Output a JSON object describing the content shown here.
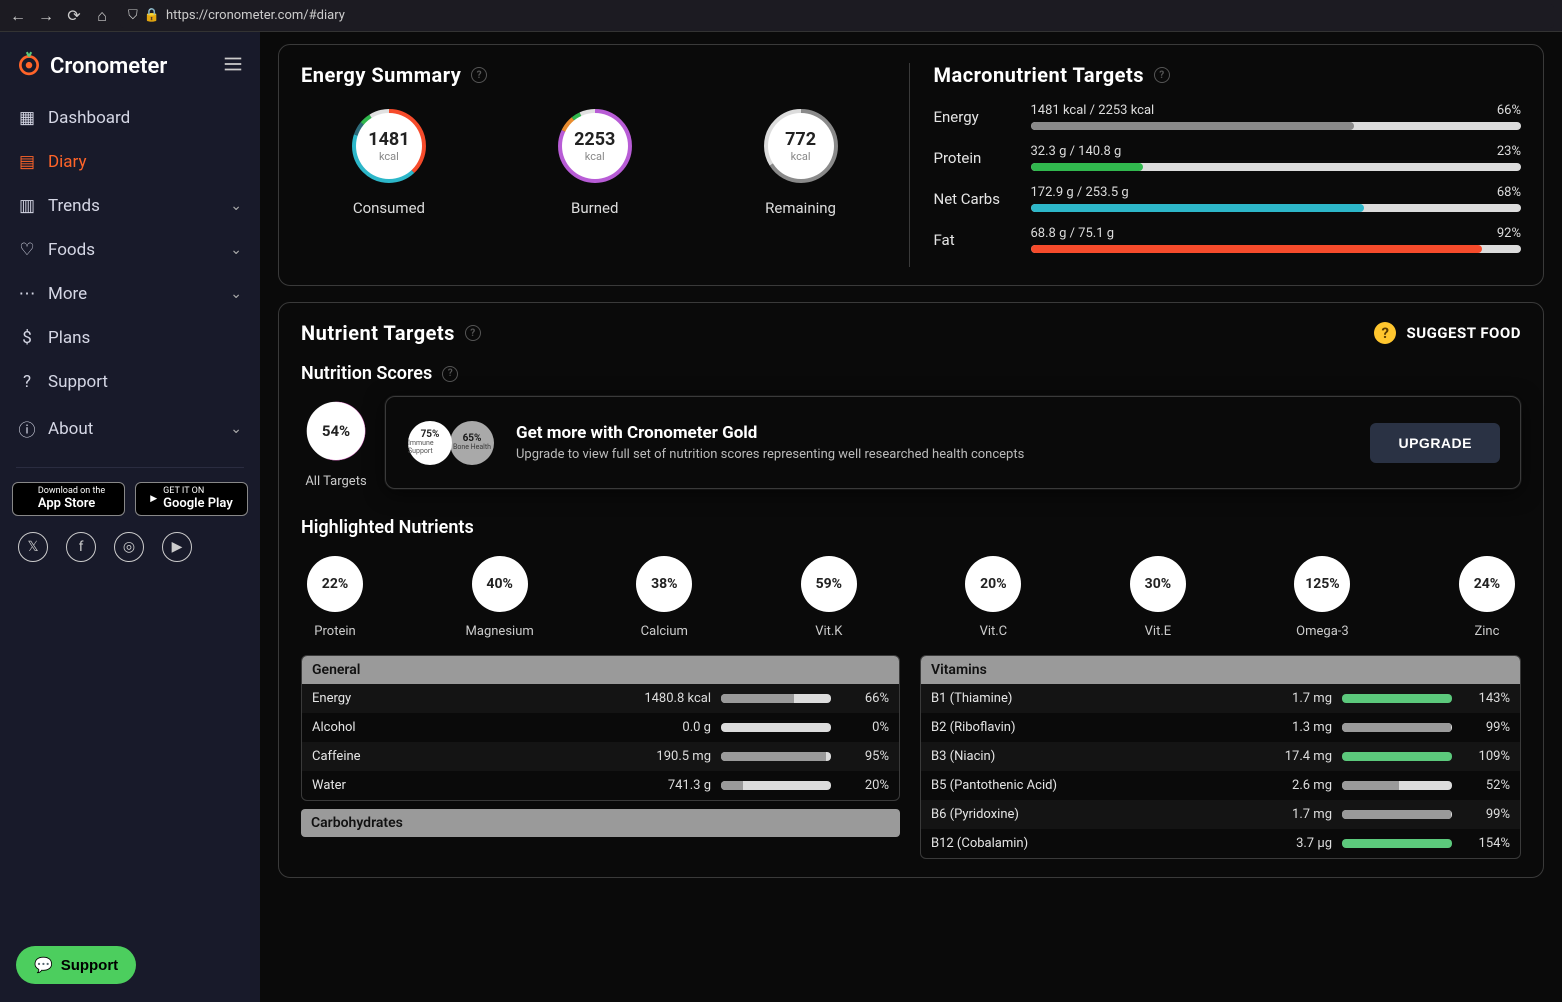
{
  "browser": {
    "url": "https://cronometer.com/#diary"
  },
  "brand": {
    "name": "Cronometer"
  },
  "nav": [
    {
      "icon": "▦",
      "label": "Dashboard",
      "active": false,
      "chevron": false
    },
    {
      "icon": "▤",
      "label": "Diary",
      "active": true,
      "chevron": false
    },
    {
      "icon": "▥",
      "label": "Trends",
      "active": false,
      "chevron": true
    },
    {
      "icon": "♡",
      "label": "Foods",
      "active": false,
      "chevron": true
    },
    {
      "icon": "⋯",
      "label": "More",
      "active": false,
      "chevron": true
    },
    {
      "icon": "$",
      "label": "Plans",
      "active": false,
      "chevron": false
    },
    {
      "icon": "?",
      "label": "Support",
      "active": false,
      "chevron": false
    },
    {
      "icon": "ⓘ",
      "label": "About",
      "active": false,
      "chevron": true
    }
  ],
  "stores": {
    "apple_top": "Download on the",
    "apple": "App Store",
    "google_top": "GET IT ON",
    "google": "Google Play"
  },
  "support_fab": "Support",
  "energy": {
    "title": "Energy Summary",
    "consumed": {
      "value": "1481",
      "unit": "kcal",
      "label": "Consumed",
      "segments": [
        {
          "color": "#f64b2b",
          "pct": 38
        },
        {
          "color": "#2db7c9",
          "pct": 42
        },
        {
          "color": "#2d6b7a",
          "pct": 6
        },
        {
          "color": "#31b84e",
          "pct": 5
        },
        {
          "color": "#e1e1e1",
          "pct": 9
        }
      ]
    },
    "burned": {
      "value": "2253",
      "unit": "kcal",
      "label": "Burned",
      "segments": [
        {
          "color": "#b85cd6",
          "pct": 82
        },
        {
          "color": "#e88b2e",
          "pct": 7
        },
        {
          "color": "#31b84e",
          "pct": 4
        },
        {
          "color": "#e1e1e1",
          "pct": 7
        }
      ]
    },
    "remaining": {
      "value": "772",
      "unit": "kcal",
      "label": "Remaining",
      "segments": [
        {
          "color": "#8a8a8a",
          "pct": 66
        },
        {
          "color": "#dcdcdc",
          "pct": 34
        }
      ]
    }
  },
  "macros": {
    "title": "Macronutrient Targets",
    "rows": [
      {
        "name": "Energy",
        "text": "1481 kcal / 2253 kcal",
        "pct": "66%",
        "fill": 66,
        "color": "#8a8a8a"
      },
      {
        "name": "Protein",
        "text": "32.3 g / 140.8 g",
        "pct": "23%",
        "fill": 23,
        "color": "#31b84e"
      },
      {
        "name": "Net Carbs",
        "text": "172.9 g / 253.5 g",
        "pct": "68%",
        "fill": 68,
        "color": "#2db7c9"
      },
      {
        "name": "Fat",
        "text": "68.8 g / 75.1 g",
        "pct": "92%",
        "fill": 92,
        "color": "#f64b2b"
      }
    ]
  },
  "nutrient": {
    "title": "Nutrient Targets",
    "suggest": "SUGGEST FOOD",
    "scores_title": "Nutrition Scores",
    "all_targets": {
      "pct": "54%",
      "fill": 54,
      "color": "#c83fad",
      "label": "All Targets"
    },
    "gold": {
      "mini": [
        {
          "pct": "75%",
          "sub": "Immune Support",
          "fill": 75,
          "color": "#c83fad"
        },
        {
          "pct": "65%",
          "sub": "Bone Health",
          "fill": 65,
          "color": "#9a9a9a"
        }
      ],
      "heading": "Get more with Cronometer Gold",
      "body": "Upgrade to view full set of nutrition scores representing well researched health concepts",
      "cta": "UPGRADE"
    },
    "highlighted_title": "Highlighted Nutrients",
    "highlighted": [
      {
        "pct": "22%",
        "fill": 22,
        "color": "#f2a52e",
        "label": "Protein"
      },
      {
        "pct": "40%",
        "fill": 40,
        "color": "#f2a52e",
        "label": "Magnesium"
      },
      {
        "pct": "38%",
        "fill": 38,
        "color": "#f2a52e",
        "label": "Calcium"
      },
      {
        "pct": "59%",
        "fill": 59,
        "color": "#f2a52e",
        "label": "Vit.K"
      },
      {
        "pct": "20%",
        "fill": 20,
        "color": "#f2a52e",
        "label": "Vit.C"
      },
      {
        "pct": "30%",
        "fill": 30,
        "color": "#f2a52e",
        "label": "Vit.E"
      },
      {
        "pct": "125%",
        "fill": 100,
        "color": "#5cc97c",
        "label": "Omega-3"
      },
      {
        "pct": "24%",
        "fill": 24,
        "color": "#f2a52e",
        "label": "Zinc"
      }
    ],
    "general": {
      "title": "General",
      "rows": [
        {
          "name": "Energy",
          "amt": "1480.8 kcal",
          "fill": 66,
          "color": "#9a9a9a",
          "pct": "66%"
        },
        {
          "name": "Alcohol",
          "amt": "0.0 g",
          "fill": 0,
          "color": "#9a9a9a",
          "pct": "0%"
        },
        {
          "name": "Caffeine",
          "amt": "190.5 mg",
          "fill": 95,
          "color": "#9a9a9a",
          "pct": "95%"
        },
        {
          "name": "Water",
          "amt": "741.3 g",
          "fill": 20,
          "color": "#9a9a9a",
          "pct": "20%"
        }
      ]
    },
    "carbs_title": "Carbohydrates",
    "vitamins": {
      "title": "Vitamins",
      "rows": [
        {
          "name": "B1 (Thiamine)",
          "amt": "1.7 mg",
          "fill": 100,
          "color": "#5cc97c",
          "pct": "143%"
        },
        {
          "name": "B2 (Riboflavin)",
          "amt": "1.3 mg",
          "fill": 99,
          "color": "#9a9a9a",
          "pct": "99%"
        },
        {
          "name": "B3 (Niacin)",
          "amt": "17.4 mg",
          "fill": 100,
          "color": "#5cc97c",
          "pct": "109%"
        },
        {
          "name": "B5 (Pantothenic Acid)",
          "amt": "2.6 mg",
          "fill": 52,
          "color": "#9a9a9a",
          "pct": "52%"
        },
        {
          "name": "B6 (Pyridoxine)",
          "amt": "1.7 mg",
          "fill": 99,
          "color": "#9a9a9a",
          "pct": "99%"
        },
        {
          "name": "B12 (Cobalamin)",
          "amt": "3.7 µg",
          "fill": 100,
          "color": "#5cc97c",
          "pct": "154%"
        }
      ]
    }
  }
}
